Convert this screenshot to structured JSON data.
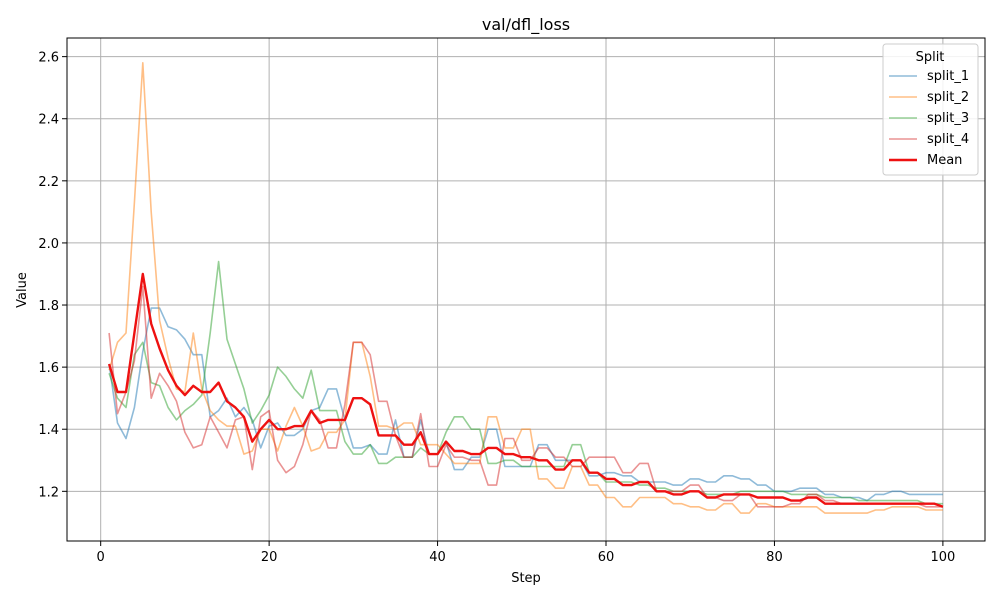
{
  "chart_data": {
    "type": "line",
    "title": "val/dfl_loss",
    "xlabel": "Step",
    "ylabel": "Value",
    "xlim": [
      -4,
      105
    ],
    "ylim": [
      1.04,
      2.66
    ],
    "xticks": [
      0,
      20,
      40,
      60,
      80,
      100
    ],
    "yticks": [
      1.2,
      1.4,
      1.6,
      1.8,
      2.0,
      2.2,
      2.4,
      2.6
    ],
    "xtick_labels": [
      "0",
      "20",
      "40",
      "60",
      "80",
      "100"
    ],
    "ytick_labels": [
      "1.2",
      "1.4",
      "1.6",
      "1.8",
      "2.0",
      "2.2",
      "2.4",
      "2.6"
    ],
    "grid": true,
    "legend": {
      "title": "Split",
      "placement": "top-right"
    },
    "x": [
      1,
      2,
      3,
      4,
      5,
      6,
      7,
      8,
      9,
      10,
      11,
      12,
      13,
      14,
      15,
      16,
      17,
      18,
      19,
      20,
      21,
      22,
      23,
      24,
      25,
      26,
      27,
      28,
      29,
      30,
      31,
      32,
      33,
      34,
      35,
      36,
      37,
      38,
      39,
      40,
      41,
      42,
      43,
      44,
      45,
      46,
      47,
      48,
      49,
      50,
      51,
      52,
      53,
      54,
      55,
      56,
      57,
      58,
      59,
      60,
      61,
      62,
      63,
      64,
      65,
      66,
      67,
      68,
      69,
      70,
      71,
      72,
      73,
      74,
      75,
      76,
      77,
      78,
      79,
      80,
      81,
      82,
      83,
      84,
      85,
      86,
      87,
      88,
      89,
      90,
      91,
      92,
      93,
      94,
      95,
      96,
      97,
      98,
      99,
      100
    ],
    "series": [
      {
        "name": "split_1",
        "color": "#1f77b4",
        "values": [
          1.61,
          1.42,
          1.37,
          1.47,
          1.65,
          1.79,
          1.79,
          1.73,
          1.72,
          1.69,
          1.64,
          1.64,
          1.44,
          1.46,
          1.5,
          1.44,
          1.47,
          1.43,
          1.34,
          1.41,
          1.42,
          1.38,
          1.38,
          1.4,
          1.46,
          1.47,
          1.53,
          1.53,
          1.43,
          1.34,
          1.34,
          1.35,
          1.32,
          1.32,
          1.43,
          1.31,
          1.31,
          1.43,
          1.32,
          1.32,
          1.36,
          1.27,
          1.27,
          1.31,
          1.31,
          1.4,
          1.4,
          1.28,
          1.28,
          1.28,
          1.28,
          1.35,
          1.35,
          1.3,
          1.3,
          1.3,
          1.3,
          1.25,
          1.25,
          1.26,
          1.26,
          1.25,
          1.25,
          1.23,
          1.23,
          1.23,
          1.23,
          1.22,
          1.22,
          1.24,
          1.24,
          1.23,
          1.23,
          1.25,
          1.25,
          1.24,
          1.24,
          1.22,
          1.22,
          1.2,
          1.2,
          1.2,
          1.21,
          1.21,
          1.21,
          1.19,
          1.19,
          1.18,
          1.18,
          1.18,
          1.17,
          1.19,
          1.19,
          1.2,
          1.2,
          1.19,
          1.19,
          1.19,
          1.19,
          1.19
        ]
      },
      {
        "name": "split_2",
        "color": "#ff7f0e",
        "values": [
          1.59,
          1.68,
          1.71,
          2.13,
          2.58,
          2.1,
          1.75,
          1.63,
          1.53,
          1.52,
          1.71,
          1.53,
          1.46,
          1.43,
          1.41,
          1.41,
          1.32,
          1.33,
          1.4,
          1.4,
          1.33,
          1.41,
          1.47,
          1.41,
          1.33,
          1.34,
          1.39,
          1.39,
          1.43,
          1.68,
          1.68,
          1.57,
          1.41,
          1.41,
          1.4,
          1.42,
          1.42,
          1.35,
          1.35,
          1.35,
          1.32,
          1.29,
          1.29,
          1.29,
          1.29,
          1.44,
          1.44,
          1.34,
          1.34,
          1.4,
          1.4,
          1.24,
          1.24,
          1.21,
          1.21,
          1.28,
          1.28,
          1.22,
          1.22,
          1.18,
          1.18,
          1.15,
          1.15,
          1.18,
          1.18,
          1.18,
          1.18,
          1.16,
          1.16,
          1.15,
          1.15,
          1.14,
          1.14,
          1.16,
          1.16,
          1.13,
          1.13,
          1.16,
          1.16,
          1.15,
          1.15,
          1.15,
          1.15,
          1.15,
          1.15,
          1.13,
          1.13,
          1.13,
          1.13,
          1.13,
          1.13,
          1.14,
          1.14,
          1.15,
          1.15,
          1.15,
          1.15,
          1.14,
          1.14,
          1.14
        ]
      },
      {
        "name": "split_3",
        "color": "#2ca02c",
        "values": [
          1.58,
          1.5,
          1.47,
          1.64,
          1.68,
          1.55,
          1.54,
          1.47,
          1.43,
          1.46,
          1.48,
          1.51,
          1.71,
          1.94,
          1.69,
          1.61,
          1.53,
          1.42,
          1.46,
          1.51,
          1.6,
          1.57,
          1.53,
          1.5,
          1.59,
          1.46,
          1.46,
          1.46,
          1.36,
          1.32,
          1.32,
          1.35,
          1.29,
          1.29,
          1.31,
          1.31,
          1.31,
          1.34,
          1.32,
          1.32,
          1.39,
          1.44,
          1.44,
          1.4,
          1.4,
          1.29,
          1.29,
          1.3,
          1.3,
          1.28,
          1.28,
          1.28,
          1.28,
          1.28,
          1.28,
          1.35,
          1.35,
          1.26,
          1.26,
          1.23,
          1.23,
          1.23,
          1.23,
          1.22,
          1.22,
          1.21,
          1.21,
          1.2,
          1.2,
          1.2,
          1.2,
          1.19,
          1.19,
          1.19,
          1.19,
          1.2,
          1.2,
          1.2,
          1.2,
          1.2,
          1.2,
          1.19,
          1.19,
          1.19,
          1.19,
          1.18,
          1.18,
          1.18,
          1.18,
          1.17,
          1.17,
          1.17,
          1.17,
          1.17,
          1.17,
          1.17,
          1.17,
          1.16,
          1.16,
          1.16
        ]
      },
      {
        "name": "split_4",
        "color": "#d62728",
        "values": [
          1.71,
          1.45,
          1.52,
          1.62,
          1.86,
          1.5,
          1.58,
          1.54,
          1.49,
          1.39,
          1.34,
          1.35,
          1.44,
          1.39,
          1.34,
          1.43,
          1.44,
          1.27,
          1.44,
          1.46,
          1.3,
          1.26,
          1.28,
          1.35,
          1.46,
          1.43,
          1.34,
          1.34,
          1.48,
          1.68,
          1.68,
          1.64,
          1.49,
          1.49,
          1.38,
          1.31,
          1.31,
          1.45,
          1.28,
          1.28,
          1.35,
          1.31,
          1.31,
          1.3,
          1.3,
          1.22,
          1.22,
          1.37,
          1.37,
          1.3,
          1.3,
          1.34,
          1.34,
          1.31,
          1.31,
          1.28,
          1.28,
          1.31,
          1.31,
          1.31,
          1.31,
          1.26,
          1.26,
          1.29,
          1.29,
          1.2,
          1.2,
          1.2,
          1.2,
          1.22,
          1.22,
          1.18,
          1.18,
          1.17,
          1.17,
          1.19,
          1.19,
          1.15,
          1.15,
          1.15,
          1.15,
          1.16,
          1.16,
          1.19,
          1.19,
          1.17,
          1.17,
          1.16,
          1.16,
          1.16,
          1.16,
          1.16,
          1.16,
          1.16,
          1.16,
          1.16,
          1.16,
          1.15,
          1.15,
          1.15
        ]
      },
      {
        "name": "Mean",
        "color": "#ee1111",
        "values": [
          1.61,
          1.52,
          1.52,
          1.71,
          1.9,
          1.74,
          1.66,
          1.59,
          1.54,
          1.51,
          1.54,
          1.52,
          1.52,
          1.55,
          1.49,
          1.47,
          1.44,
          1.36,
          1.4,
          1.43,
          1.4,
          1.4,
          1.41,
          1.41,
          1.46,
          1.42,
          1.43,
          1.43,
          1.43,
          1.5,
          1.5,
          1.48,
          1.38,
          1.38,
          1.38,
          1.35,
          1.35,
          1.39,
          1.32,
          1.32,
          1.36,
          1.33,
          1.33,
          1.32,
          1.32,
          1.34,
          1.34,
          1.32,
          1.32,
          1.31,
          1.31,
          1.3,
          1.3,
          1.27,
          1.27,
          1.3,
          1.3,
          1.26,
          1.26,
          1.24,
          1.24,
          1.22,
          1.22,
          1.23,
          1.23,
          1.2,
          1.2,
          1.19,
          1.19,
          1.2,
          1.2,
          1.18,
          1.18,
          1.19,
          1.19,
          1.19,
          1.19,
          1.18,
          1.18,
          1.18,
          1.18,
          1.17,
          1.17,
          1.18,
          1.18,
          1.16,
          1.16,
          1.16,
          1.16,
          1.16,
          1.16,
          1.16,
          1.16,
          1.16,
          1.16,
          1.16,
          1.16,
          1.16,
          1.16,
          1.15
        ]
      }
    ]
  }
}
